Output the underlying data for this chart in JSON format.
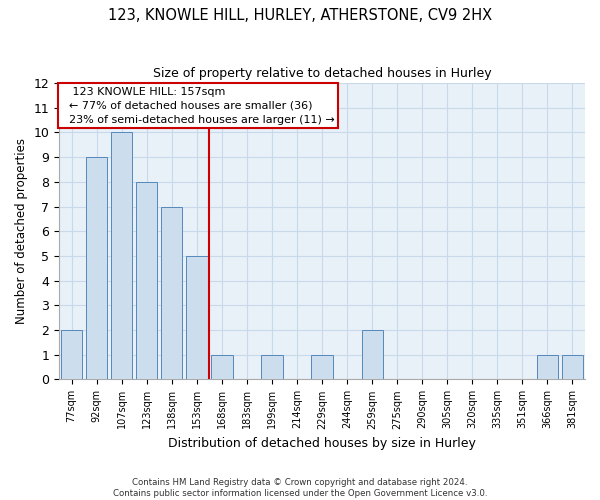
{
  "title1": "123, KNOWLE HILL, HURLEY, ATHERSTONE, CV9 2HX",
  "title2": "Size of property relative to detached houses in Hurley",
  "xlabel": "Distribution of detached houses by size in Hurley",
  "ylabel": "Number of detached properties",
  "categories": [
    "77sqm",
    "92sqm",
    "107sqm",
    "123sqm",
    "138sqm",
    "153sqm",
    "168sqm",
    "183sqm",
    "199sqm",
    "214sqm",
    "229sqm",
    "244sqm",
    "259sqm",
    "275sqm",
    "290sqm",
    "305sqm",
    "320sqm",
    "335sqm",
    "351sqm",
    "366sqm",
    "381sqm"
  ],
  "values": [
    2,
    9,
    10,
    8,
    7,
    5,
    1,
    0,
    1,
    0,
    1,
    0,
    2,
    0,
    0,
    0,
    0,
    0,
    0,
    1,
    1
  ],
  "bar_color": "#ccdded",
  "bar_edge_color": "#5588bb",
  "vline_color": "#cc0000",
  "annotation_line1": "   123 KNOWLE HILL: 157sqm",
  "annotation_line2": "  ← 77% of detached houses are smaller (36)",
  "annotation_line3": "  23% of semi-detached houses are larger (11) →",
  "annotation_box_color": "#ffffff",
  "annotation_box_edge": "#cc0000",
  "ylim": [
    0,
    12
  ],
  "yticks": [
    0,
    1,
    2,
    3,
    4,
    5,
    6,
    7,
    8,
    9,
    10,
    11,
    12
  ],
  "footnote1": "Contains HM Land Registry data © Crown copyright and database right 2024.",
  "footnote2": "Contains public sector information licensed under the Open Government Licence v3.0.",
  "grid_color": "#c8daea",
  "bg_color": "#e8f0f8"
}
